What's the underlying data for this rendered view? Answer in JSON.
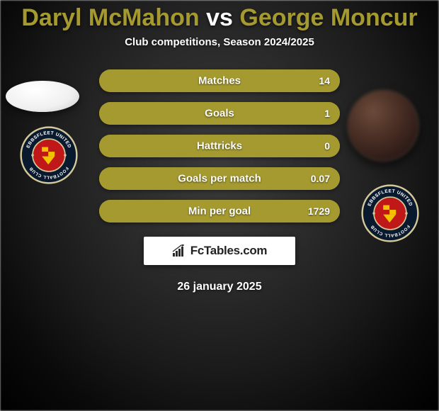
{
  "title": {
    "player1": "Daryl McMahon",
    "vs": "vs",
    "player2": "George Moncur",
    "player1_color": "#a59a2f",
    "vs_color": "#ffffff",
    "player2_color": "#a59a2f"
  },
  "subtitle": "Club competitions, Season 2024/2025",
  "stats": {
    "bar_bg": "#a59a2f",
    "rows": [
      {
        "label": "Matches",
        "left": "",
        "right": "14",
        "left_pct": 0,
        "right_pct": 100
      },
      {
        "label": "Goals",
        "left": "",
        "right": "1",
        "left_pct": 0,
        "right_pct": 100
      },
      {
        "label": "Hattricks",
        "left": "",
        "right": "0",
        "left_pct": 0,
        "right_pct": 100
      },
      {
        "label": "Goals per match",
        "left": "",
        "right": "0.07",
        "left_pct": 0,
        "right_pct": 100
      },
      {
        "label": "Min per goal",
        "left": "",
        "right": "1729",
        "left_pct": 0,
        "right_pct": 100
      }
    ]
  },
  "badge": {
    "outer_ring": "#0a1a2e",
    "outer_border": "#d4c99a",
    "inner_bg": "#c01818",
    "ring_text_top": "EBBSFLEET UNITED",
    "ring_text_bottom": "FOOTBALL CLUB",
    "ring_text_color": "#ffffff"
  },
  "fctables": {
    "text": "FcTables.com",
    "icon_color": "#2a2a2a"
  },
  "date": "26 january 2025"
}
